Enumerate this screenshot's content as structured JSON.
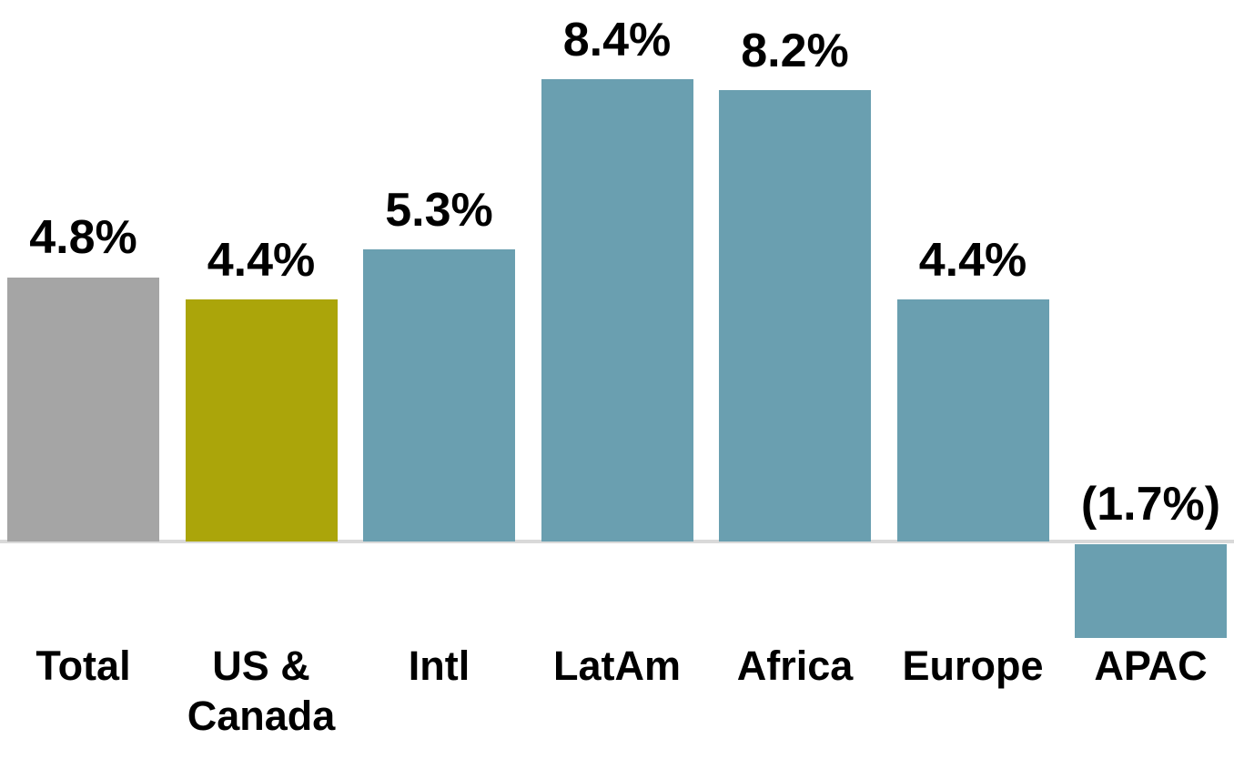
{
  "chart_data": {
    "type": "bar",
    "title": "",
    "xlabel": "",
    "ylabel": "",
    "categories": [
      "Total",
      "US &\nCanada",
      "Intl",
      "LatAm",
      "Africa",
      "Europe",
      "APAC"
    ],
    "values": [
      4.8,
      4.4,
      5.3,
      8.4,
      8.2,
      4.4,
      -1.7
    ],
    "value_labels": [
      "4.8%",
      "4.4%",
      "5.3%",
      "8.4%",
      "8.2%",
      "4.4%",
      "(1.7%)"
    ],
    "bar_colors": [
      "#a5a5a5",
      "#aba50a",
      "#6a9fb0",
      "#6a9fb0",
      "#6a9fb0",
      "#6a9fb0",
      "#6a9fb0"
    ],
    "ylim": [
      -2.5,
      9.5
    ],
    "grid": false,
    "legend": false,
    "axis_line_color": "#d9d9d9",
    "label_color": "#000000",
    "negative_values_in_parentheses": true
  }
}
